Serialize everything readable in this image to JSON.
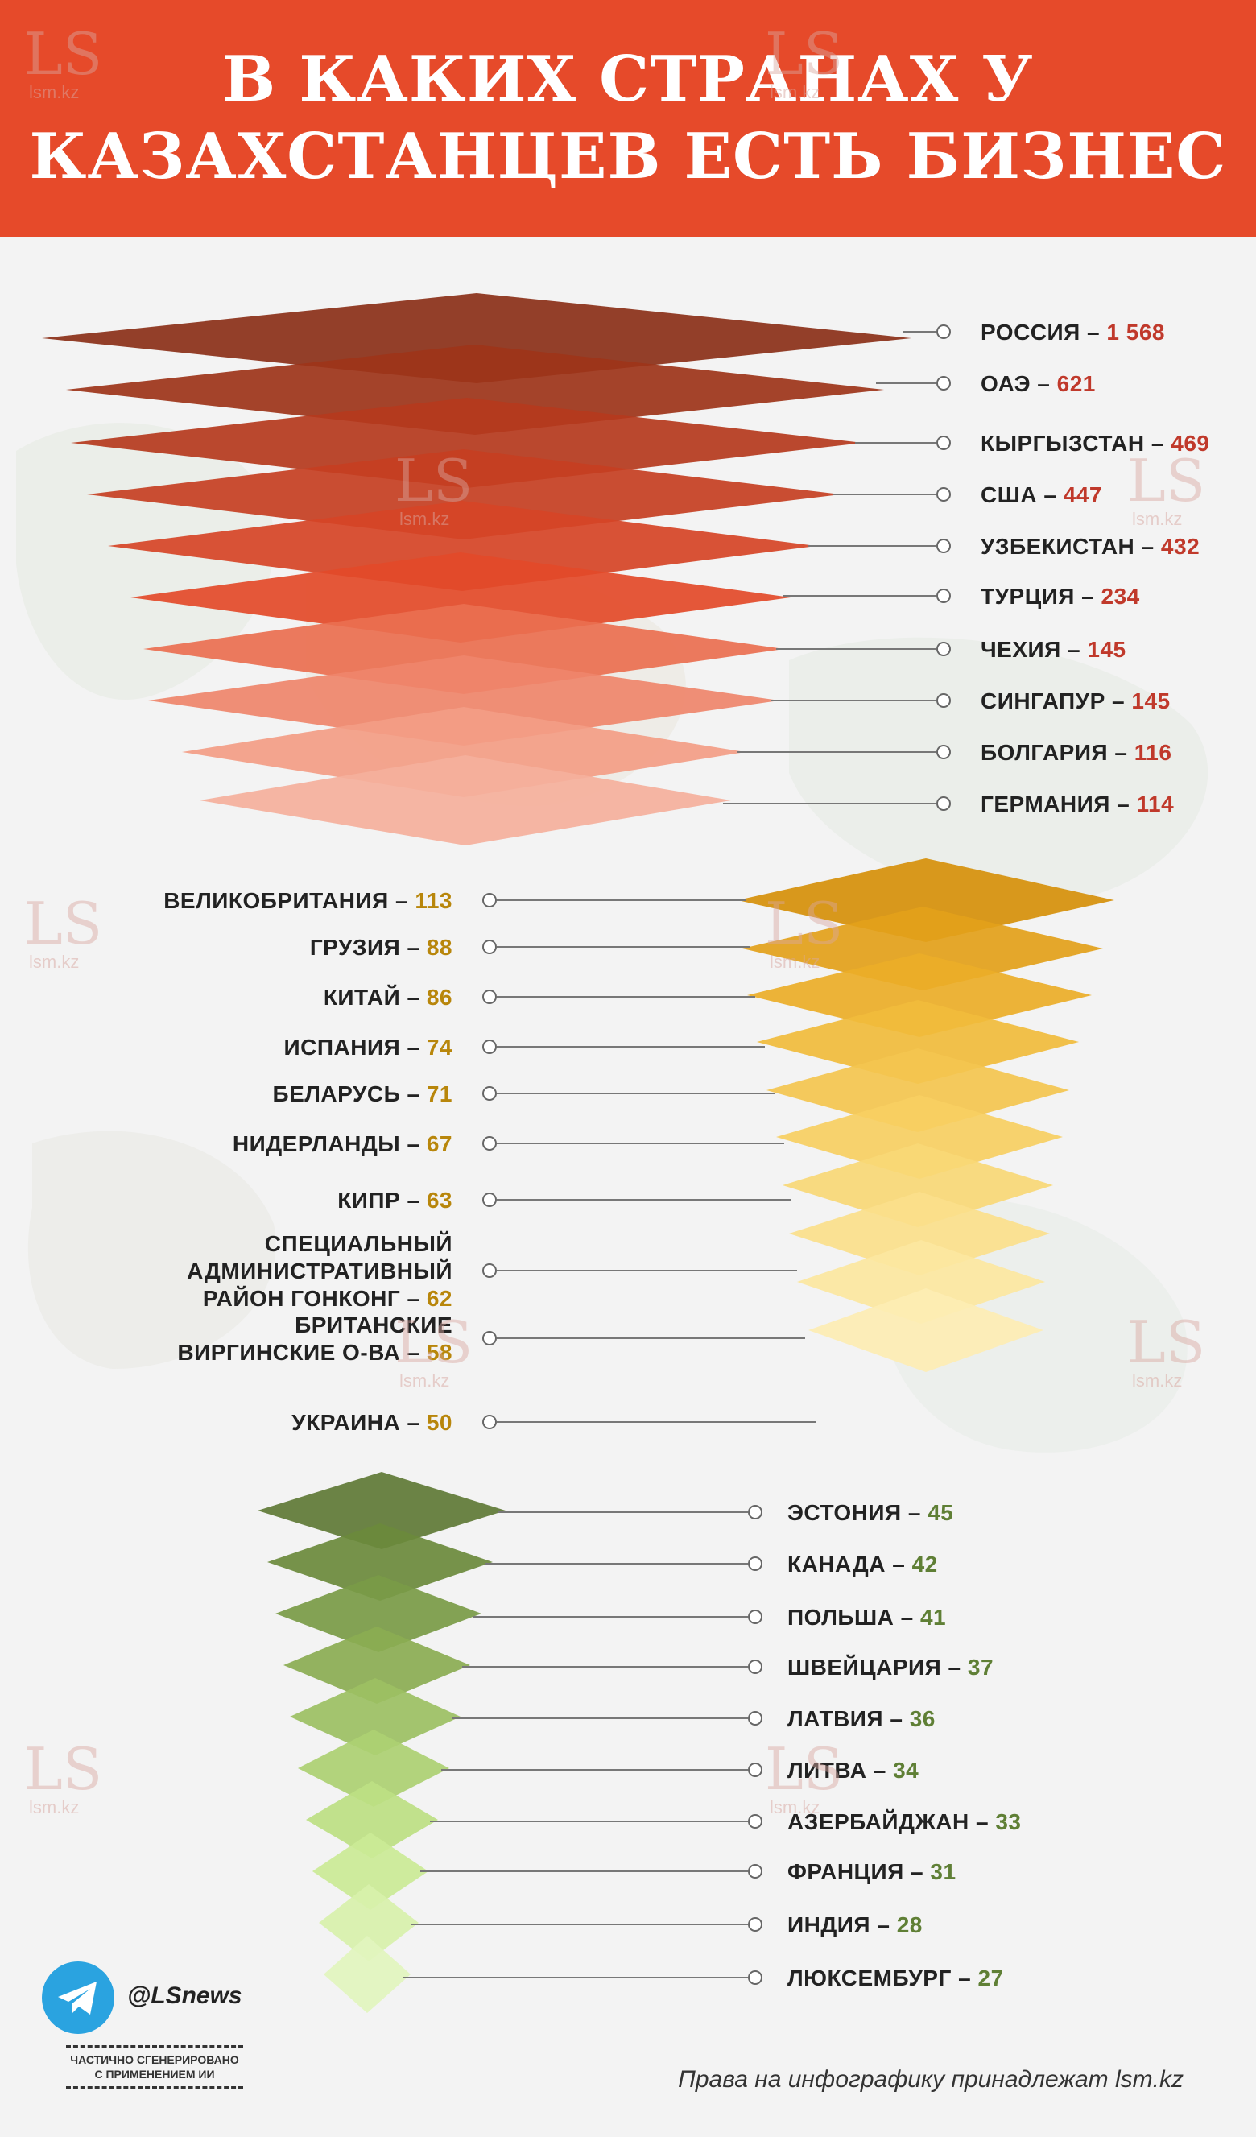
{
  "title": {
    "line1": "В КАКИХ СТРАНАХ У",
    "line2": "КАЗАХСТАНЦЕВ ЕСТЬ БИЗНЕС"
  },
  "watermark": {
    "logo": "LS",
    "site": "lsm.kz"
  },
  "colors": {
    "header_bg": "#e64a2a",
    "value_red": "#c0392b",
    "value_orange": "#b8860b",
    "value_green": "#5f7f35",
    "label_dark": "#222222",
    "leader_line": "#777777"
  },
  "chart_data": [
    {
      "type": "diamond-stack",
      "group": "top",
      "categories": [
        "РОССИЯ",
        "ОАЭ",
        "КЫРГЫЗСТАН",
        "США",
        "УЗБЕКИСТАН",
        "ТУРЦИЯ",
        "ЧЕХИЯ",
        "СИНГАПУР",
        "БОЛГАРИЯ",
        "ГЕРМАНИЯ"
      ],
      "values": [
        "1 568",
        "621",
        "469",
        "447",
        "432",
        "234",
        "145",
        "145",
        "116",
        "114"
      ],
      "colors": [
        "#8b3018",
        "#9d3419",
        "#b5391d",
        "#c63f22",
        "#d64426",
        "#e34a29",
        "#ea6f50",
        "#ef866b",
        "#f39d85",
        "#f5b09c"
      ],
      "label_side": "right"
    },
    {
      "type": "diamond-stack",
      "group": "middle",
      "categories": [
        "ВЕЛИКОБРИТАНИЯ",
        "ГРУЗИЯ",
        "КИТАЙ",
        "ИСПАНИЯ",
        "БЕЛАРУСЬ",
        "НИДЕРЛАНДЫ",
        "КИПР",
        "СПЕЦИАЛЬНЫЙ АДМИНИСТРАТИВНЫЙ РАЙОН ГОНКОНГ",
        "БРИТАНСКИЕ ВИРГИНСКИЕ О-ВА",
        "УКРАИНА"
      ],
      "values": [
        "113",
        "88",
        "86",
        "74",
        "71",
        "67",
        "63",
        "62",
        "58",
        "50"
      ],
      "colors": [
        "#d6900a",
        "#e3a11a",
        "#ebae28",
        "#f1bc3c",
        "#f4c64f",
        "#f7cf62",
        "#f9d876",
        "#fbe08b",
        "#fce79f",
        "#fdedb3"
      ],
      "label_side": "left"
    },
    {
      "type": "diamond-stack",
      "group": "bottom",
      "categories": [
        "ЭСТОНИЯ",
        "КАНАДА",
        "ПОЛЬША",
        "ШВЕЙЦАРИЯ",
        "ЛАТВИЯ",
        "ЛИТВА",
        "АЗЕРБАЙДЖАН",
        "ФРАНЦИЯ",
        "ИНДИЯ",
        "ЛЮКСЕМБУРГ"
      ],
      "values": [
        "45",
        "42",
        "41",
        "37",
        "36",
        "34",
        "33",
        "31",
        "28",
        "27"
      ],
      "colors": [
        "#5f7a36",
        "#6b8a3c",
        "#7a9b46",
        "#8bad52",
        "#9cc063",
        "#add072",
        "#bde083",
        "#cbea96",
        "#d8f1ab",
        "#e2f5be"
      ],
      "label_side": "right"
    }
  ],
  "footer": {
    "handle": "@LSnews",
    "ai_note_line1": "ЧАСТИЧНО СГЕНЕРИРОВАНО",
    "ai_note_line2": "С ПРИМЕНЕНИЕМ ИИ",
    "rights": "Права на инфографику принадлежат lsm.kz"
  }
}
